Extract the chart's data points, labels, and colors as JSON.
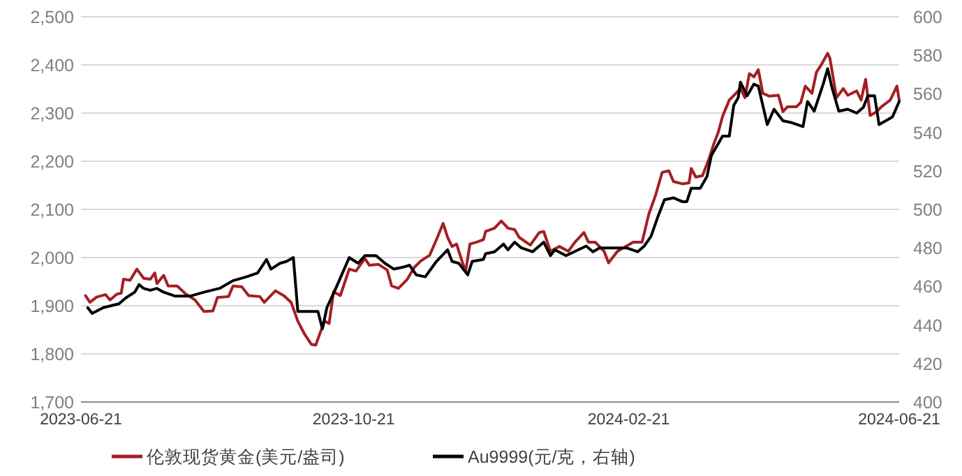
{
  "chart_data": {
    "type": "line",
    "xlim": [
      "2023-06-21",
      "2024-06-21"
    ],
    "xticks": [
      "2023-06-21",
      "2023-10-21",
      "2024-02-21",
      "2024-06-21"
    ],
    "ylim": [
      1700,
      2500
    ],
    "yticks": [
      {
        "value": 1700,
        "label": "1,700"
      },
      {
        "value": 1800,
        "label": "1,800"
      },
      {
        "value": 1900,
        "label": "1,900"
      },
      {
        "value": 2000,
        "label": "2,000"
      },
      {
        "value": 2100,
        "label": "2,100"
      },
      {
        "value": 2200,
        "label": "2,200"
      },
      {
        "value": 2300,
        "label": "2,300"
      },
      {
        "value": 2400,
        "label": "2,400"
      },
      {
        "value": 2500,
        "label": "2,500"
      }
    ],
    "y2lim": [
      400,
      600
    ],
    "y2ticks": [
      400,
      420,
      440,
      460,
      480,
      500,
      520,
      540,
      560,
      580,
      600
    ],
    "grid": "y",
    "legend": "bottom",
    "series": [
      {
        "name": "伦敦现货黄金(美元/盎司)",
        "color": "#a31f24",
        "axis": "y",
        "x": [
          "2023-06-23",
          "2023-06-25",
          "2023-06-28",
          "2023-07-02",
          "2023-07-04",
          "2023-07-07",
          "2023-07-09",
          "2023-07-10",
          "2023-07-13",
          "2023-07-16",
          "2023-07-19",
          "2023-07-22",
          "2023-07-24",
          "2023-07-25",
          "2023-07-28",
          "2023-07-30",
          "2023-08-03",
          "2023-08-07",
          "2023-08-11",
          "2023-08-15",
          "2023-08-19",
          "2023-08-21",
          "2023-08-26",
          "2023-08-28",
          "2023-09-01",
          "2023-09-04",
          "2023-09-09",
          "2023-09-11",
          "2023-09-16",
          "2023-09-20",
          "2023-09-23",
          "2023-09-26",
          "2023-09-29",
          "2023-10-02",
          "2023-10-04",
          "2023-10-06",
          "2023-10-08",
          "2023-10-10",
          "2023-10-12",
          "2023-10-15",
          "2023-10-19",
          "2023-10-22",
          "2023-10-26",
          "2023-10-28",
          "2023-11-01",
          "2023-11-05",
          "2023-11-07",
          "2023-11-10",
          "2023-11-14",
          "2023-11-17",
          "2023-11-20",
          "2023-11-24",
          "2023-11-27",
          "2023-11-30",
          "2023-12-02",
          "2023-12-04",
          "2023-12-06",
          "2023-12-10",
          "2023-12-12",
          "2023-12-15",
          "2023-12-18",
          "2023-12-19",
          "2023-12-23",
          "2023-12-26",
          "2023-12-29",
          "2024-01-01",
          "2024-01-03",
          "2024-01-08",
          "2024-01-12",
          "2024-01-14",
          "2024-01-17",
          "2024-01-21",
          "2024-01-25",
          "2024-01-28",
          "2024-02-01",
          "2024-02-03",
          "2024-02-06",
          "2024-02-10",
          "2024-02-12",
          "2024-02-16",
          "2024-02-23",
          "2024-02-27",
          "2024-03-01",
          "2024-03-04",
          "2024-03-07",
          "2024-03-10",
          "2024-03-12",
          "2024-03-16",
          "2024-03-19",
          "2024-03-20",
          "2024-03-22",
          "2024-03-25",
          "2024-03-28",
          "2024-03-30",
          "2024-04-01",
          "2024-04-03",
          "2024-04-06",
          "2024-04-09",
          "2024-04-11",
          "2024-04-13",
          "2024-04-15",
          "2024-04-17",
          "2024-04-19",
          "2024-04-21",
          "2024-04-24",
          "2024-04-28",
          "2024-04-30",
          "2024-05-02",
          "2024-05-06",
          "2024-05-08",
          "2024-05-10",
          "2024-05-13",
          "2024-05-15",
          "2024-05-17",
          "2024-05-20",
          "2024-05-21",
          "2024-05-24",
          "2024-05-27",
          "2024-05-29",
          "2024-06-02",
          "2024-06-04",
          "2024-06-06",
          "2024-06-08",
          "2024-06-11",
          "2024-06-13",
          "2024-06-17",
          "2024-06-20",
          "2024-06-21"
        ],
        "values": [
          1921,
          1907,
          1918,
          1923,
          1912,
          1924,
          1926,
          1955,
          1953,
          1976,
          1957,
          1955,
          1968,
          1946,
          1963,
          1941,
          1941,
          1924,
          1912,
          1888,
          1889,
          1917,
          1919,
          1941,
          1939,
          1921,
          1919,
          1907,
          1931,
          1920,
          1907,
          1868,
          1841,
          1820,
          1818,
          1844,
          1868,
          1863,
          1929,
          1921,
          1976,
          1972,
          1998,
          1984,
          1986,
          1974,
          1941,
          1936,
          1955,
          1979,
          1993,
          2005,
          2037,
          2071,
          2042,
          2023,
          2028,
          1970,
          2028,
          2032,
          2037,
          2054,
          2061,
          2076,
          2061,
          2058,
          2042,
          2026,
          2052,
          2054,
          2013,
          2023,
          2013,
          2032,
          2052,
          2032,
          2032,
          2013,
          1989,
          2013,
          2032,
          2032,
          2090,
          2129,
          2177,
          2180,
          2158,
          2153,
          2155,
          2185,
          2167,
          2170,
          2206,
          2235,
          2259,
          2293,
          2327,
          2341,
          2351,
          2332,
          2382,
          2375,
          2390,
          2341,
          2335,
          2337,
          2303,
          2313,
          2313,
          2322,
          2356,
          2341,
          2385,
          2399,
          2424,
          2414,
          2332,
          2351,
          2337,
          2346,
          2327,
          2370,
          2295,
          2303,
          2313,
          2327,
          2356,
          2327
        ]
      },
      {
        "name": "Au9999(元/克，右轴)",
        "color": "#000000",
        "axis": "y2",
        "x": [
          "2023-06-24",
          "2023-06-26",
          "2023-07-01",
          "2023-07-08",
          "2023-07-11",
          "2023-07-15",
          "2023-07-17",
          "2023-07-19",
          "2023-07-22",
          "2023-07-25",
          "2023-07-28",
          "2023-08-02",
          "2023-08-09",
          "2023-08-15",
          "2023-08-22",
          "2023-08-28",
          "2023-09-03",
          "2023-09-08",
          "2023-09-12",
          "2023-09-14",
          "2023-09-18",
          "2023-09-21",
          "2023-09-24",
          "2023-09-26",
          "2023-10-05",
          "2023-10-07",
          "2023-10-09",
          "2023-10-13",
          "2023-10-19",
          "2023-10-23",
          "2023-10-26",
          "2023-10-31",
          "2023-11-04",
          "2023-11-08",
          "2023-11-12",
          "2023-11-15",
          "2023-11-18",
          "2023-11-22",
          "2023-11-27",
          "2023-12-02",
          "2023-12-04",
          "2023-12-07",
          "2023-12-11",
          "2023-12-13",
          "2023-12-18",
          "2023-12-19",
          "2023-12-23",
          "2023-12-27",
          "2023-12-29",
          "2024-01-01",
          "2024-01-04",
          "2024-01-09",
          "2024-01-14",
          "2024-01-17",
          "2024-01-19",
          "2024-01-24",
          "2024-02-02",
          "2024-02-05",
          "2024-02-08",
          "2024-02-20",
          "2024-02-25",
          "2024-02-28",
          "2024-03-02",
          "2024-03-05",
          "2024-03-08",
          "2024-03-12",
          "2024-03-16",
          "2024-03-18",
          "2024-03-20",
          "2024-03-24",
          "2024-03-27",
          "2024-03-29",
          "2024-04-01",
          "2024-04-03",
          "2024-04-06",
          "2024-04-08",
          "2024-04-10",
          "2024-04-11",
          "2024-04-14",
          "2024-04-17",
          "2024-04-19",
          "2024-04-23",
          "2024-04-26",
          "2024-04-30",
          "2024-05-04",
          "2024-05-09",
          "2024-05-11",
          "2024-05-14",
          "2024-05-18",
          "2024-05-20",
          "2024-05-22",
          "2024-05-25",
          "2024-05-29",
          "2024-06-02",
          "2024-06-05",
          "2024-06-07",
          "2024-06-10",
          "2024-06-12",
          "2024-06-18",
          "2024-06-21"
        ],
        "values": [
          449,
          446,
          449,
          451,
          454,
          457,
          461,
          459,
          458,
          459,
          457,
          455,
          455,
          457,
          459,
          463,
          465,
          467,
          474,
          469,
          472,
          473,
          475,
          447,
          447,
          438,
          449,
          459,
          475,
          472,
          476,
          476,
          472,
          469,
          470,
          471,
          466,
          465,
          473,
          479,
          473,
          472,
          466,
          473,
          474,
          477,
          478,
          482,
          479,
          483,
          480,
          478,
          483,
          476,
          479,
          476,
          481,
          478,
          480,
          480,
          478,
          481,
          486,
          496,
          505,
          506,
          504,
          504,
          511,
          511,
          517,
          528,
          534,
          538,
          538,
          554,
          558,
          566,
          559,
          565,
          564,
          544,
          552,
          546,
          545,
          543,
          556,
          551,
          565,
          573,
          563,
          551,
          552,
          550,
          553,
          559,
          559,
          544,
          548,
          556
        ]
      }
    ]
  }
}
